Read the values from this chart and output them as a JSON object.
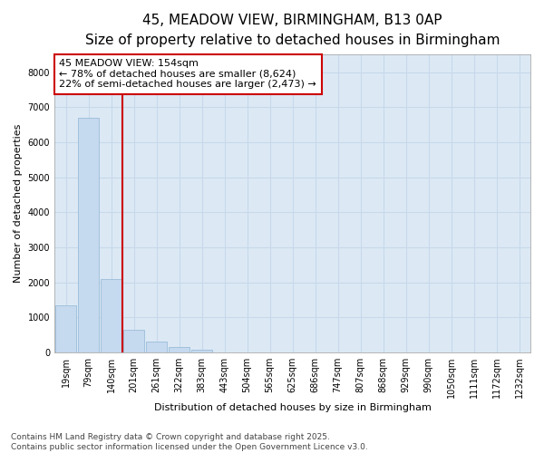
{
  "title_line1": "45, MEADOW VIEW, BIRMINGHAM, B13 0AP",
  "title_line2": "Size of property relative to detached houses in Birmingham",
  "xlabel": "Distribution of detached houses by size in Birmingham",
  "ylabel": "Number of detached properties",
  "categories": [
    "19sqm",
    "79sqm",
    "140sqm",
    "201sqm",
    "261sqm",
    "322sqm",
    "383sqm",
    "443sqm",
    "504sqm",
    "565sqm",
    "625sqm",
    "686sqm",
    "747sqm",
    "807sqm",
    "868sqm",
    "929sqm",
    "990sqm",
    "1050sqm",
    "1111sqm",
    "1172sqm",
    "1232sqm"
  ],
  "values": [
    1350,
    6700,
    2100,
    650,
    320,
    150,
    80,
    0,
    0,
    0,
    0,
    0,
    0,
    0,
    0,
    0,
    0,
    0,
    0,
    0,
    0
  ],
  "bar_color": "#c5d9ef",
  "bar_edge_color": "#9bbdd8",
  "vline_color": "#cc0000",
  "annotation_text": "45 MEADOW VIEW: 154sqm\n← 78% of detached houses are smaller (8,624)\n22% of semi-detached houses are larger (2,473) →",
  "annotation_box_facecolor": "#ffffff",
  "annotation_box_edgecolor": "#cc0000",
  "ylim": [
    0,
    8500
  ],
  "yticks": [
    0,
    1000,
    2000,
    3000,
    4000,
    5000,
    6000,
    7000,
    8000
  ],
  "grid_color": "#c8d8ea",
  "plot_bg_color": "#dce9f5",
  "fig_bg_color": "#ffffff",
  "footer_text": "Contains HM Land Registry data © Crown copyright and database right 2025.\nContains public sector information licensed under the Open Government Licence v3.0.",
  "title1_fontsize": 11,
  "title2_fontsize": 10,
  "axis_label_fontsize": 8,
  "tick_fontsize": 7,
  "annotation_fontsize": 8,
  "footer_fontsize": 6.5,
  "vline_x_index": 2
}
